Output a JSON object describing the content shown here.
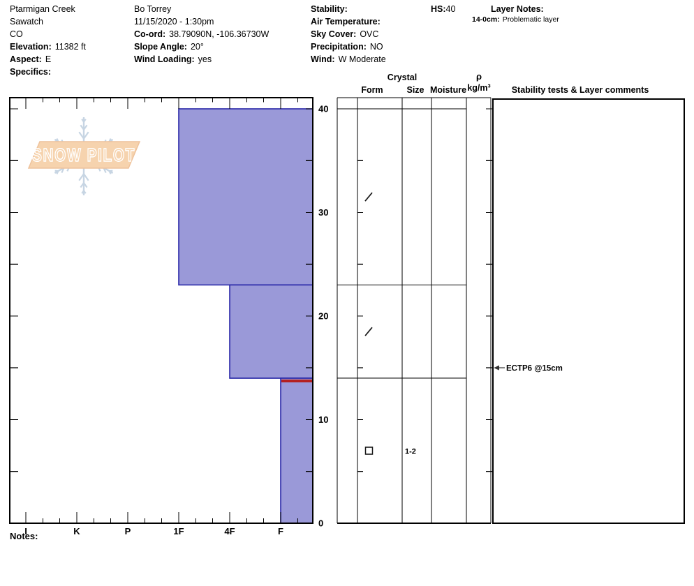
{
  "header": {
    "location": {
      "site": "Ptarmigan Creek",
      "range": "Sawatch",
      "state": "CO",
      "elevation_label": "Elevation:",
      "elevation_value": "11382 ft",
      "aspect_label": "Aspect:",
      "aspect_value": "E",
      "specifics_label": "Specifics:",
      "specifics_value": ""
    },
    "observer": {
      "name": "Bo Torrey",
      "datetime": "11/15/2020 - 1:30pm",
      "coord_label": "Co-ord:",
      "coord_value": "38.79090N, -106.36730W",
      "slope_label": "Slope Angle:",
      "slope_value": "20°",
      "wind_loading_label": "Wind Loading:",
      "wind_loading_value": "yes"
    },
    "conditions": {
      "stability_label": "Stability:",
      "stability_value": "",
      "air_temp_label": "Air Temperature:",
      "air_temp_value": "",
      "sky_label": "Sky Cover:",
      "sky_value": "OVC",
      "precip_label": "Precipitation:",
      "precip_value": "NO",
      "wind_label": "Wind:",
      "wind_value": "W Moderate"
    },
    "hs_label": "HS:",
    "hs_value": "40",
    "layer_notes_label": "Layer Notes:",
    "layer_note_range": "14-0cm:",
    "layer_note_text": "Problematic layer"
  },
  "table_headers": {
    "crystal": "Crystal",
    "form": "Form",
    "size": "Size",
    "moisture": "Moisture",
    "density_symbol": "ρ",
    "density_unit": "kg/m³",
    "stability": "Stability tests & Layer comments"
  },
  "logo": {
    "text": "SNOW PILOT",
    "snowflake_color": "#c7d5e3",
    "banner_fill": "#f6d3ae",
    "banner_edge": "#eec29b",
    "text_color": "#ffffff"
  },
  "notes_label": "Notes:",
  "chart_data": {
    "type": "bar",
    "orientation": "horizontal-hardness-profile",
    "depth_axis": {
      "unit": "cm",
      "min": 0,
      "max": 40,
      "major_tick_labels": [
        40,
        30,
        20,
        10,
        0
      ],
      "minor_tick_step_cm": 5
    },
    "hardness_axis": {
      "categories": [
        "I",
        "K",
        "P",
        "1F",
        "4F",
        "F"
      ]
    },
    "total_snow_height_cm": 40,
    "layers": [
      {
        "top_cm": 40,
        "bottom_cm": 23,
        "hardness": "1F",
        "form_symbol": "/",
        "size_mm": "",
        "problematic": false
      },
      {
        "top_cm": 23,
        "bottom_cm": 14,
        "hardness": "4F",
        "form_symbol": "/",
        "size_mm": "",
        "problematic": false
      },
      {
        "top_cm": 14,
        "bottom_cm": 0,
        "hardness": "F",
        "form_symbol": "□",
        "size_mm": "1-2",
        "problematic": true
      }
    ],
    "stability_tests": [
      {
        "label": "ECTP6 @15cm",
        "depth_cm": 15
      }
    ],
    "colors": {
      "layer_fill": "#9a99d8",
      "layer_border": "#2a28a8",
      "problem_layer_line": "#b42020",
      "grid": "#000000"
    }
  }
}
